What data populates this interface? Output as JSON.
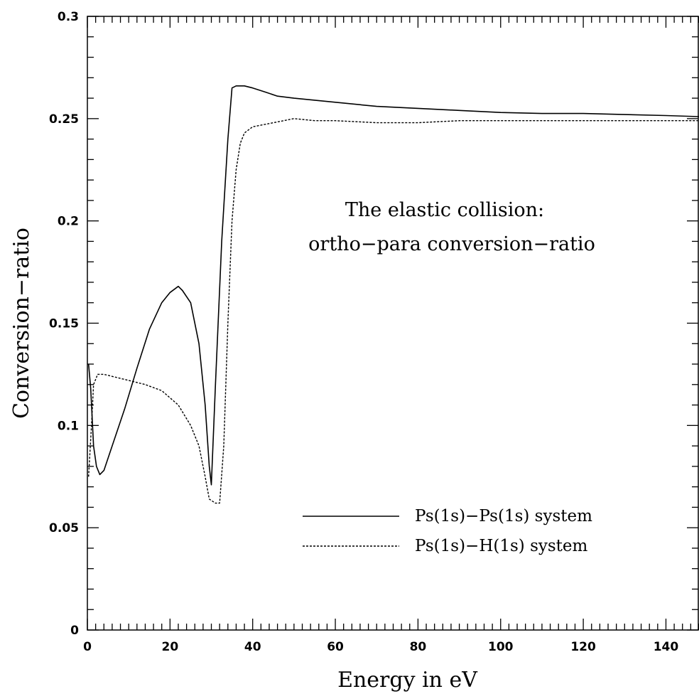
{
  "chart_data": {
    "type": "line",
    "title": "",
    "xlabel": "Energy in eV",
    "ylabel": "Conversion−ratio",
    "xlim": [
      0,
      148
    ],
    "ylim": [
      0,
      0.3
    ],
    "x_ticks": [
      0,
      20,
      40,
      60,
      80,
      100,
      120,
      140
    ],
    "y_ticks": [
      0,
      0.05,
      0.1,
      0.15,
      0.2,
      0.25,
      0.3
    ],
    "x_tick_labels": [
      "0",
      "20",
      "40",
      "60",
      "80",
      "100",
      "120",
      "140"
    ],
    "y_tick_labels": [
      "0",
      "0.05",
      "0.1",
      "0.15",
      "0.2",
      "0.25",
      "0.3"
    ],
    "grid": false,
    "annotation": [
      "The elastic collision:",
      "ortho−para conversion−ratio"
    ],
    "legend_position": "bottom-right",
    "series": [
      {
        "name": "Ps(1s)−Ps(1s) system",
        "style": "solid",
        "color": "#000000",
        "points": [
          [
            0.3,
            0.13
          ],
          [
            0.8,
            0.118
          ],
          [
            1.5,
            0.09
          ],
          [
            2.2,
            0.08
          ],
          [
            3,
            0.076
          ],
          [
            4,
            0.078
          ],
          [
            6,
            0.09
          ],
          [
            9,
            0.108
          ],
          [
            12,
            0.128
          ],
          [
            15,
            0.147
          ],
          [
            18,
            0.16
          ],
          [
            20,
            0.165
          ],
          [
            22,
            0.168
          ],
          [
            23,
            0.166
          ],
          [
            25,
            0.16
          ],
          [
            27,
            0.14
          ],
          [
            28.5,
            0.11
          ],
          [
            29.5,
            0.08
          ],
          [
            30,
            0.071
          ],
          [
            31,
            0.12
          ],
          [
            32.5,
            0.19
          ],
          [
            34,
            0.24
          ],
          [
            35,
            0.265
          ],
          [
            36,
            0.266
          ],
          [
            38,
            0.266
          ],
          [
            40,
            0.265
          ],
          [
            43,
            0.263
          ],
          [
            46,
            0.261
          ],
          [
            50,
            0.26
          ],
          [
            60,
            0.258
          ],
          [
            70,
            0.256
          ],
          [
            80,
            0.255
          ],
          [
            90,
            0.254
          ],
          [
            100,
            0.253
          ],
          [
            110,
            0.2525
          ],
          [
            120,
            0.2525
          ],
          [
            130,
            0.252
          ],
          [
            140,
            0.2515
          ],
          [
            148,
            0.251
          ]
        ]
      },
      {
        "name": "Ps(1s)−H(1s) system",
        "style": "dashed",
        "color": "#000000",
        "points": [
          [
            0.3,
            0.075
          ],
          [
            1,
            0.1
          ],
          [
            1.5,
            0.12
          ],
          [
            2.5,
            0.125
          ],
          [
            4,
            0.125
          ],
          [
            6,
            0.124
          ],
          [
            10,
            0.122
          ],
          [
            14,
            0.12
          ],
          [
            18,
            0.117
          ],
          [
            22,
            0.11
          ],
          [
            25,
            0.1
          ],
          [
            27,
            0.09
          ],
          [
            28.5,
            0.075
          ],
          [
            29.5,
            0.064
          ],
          [
            31,
            0.062
          ],
          [
            32,
            0.062
          ],
          [
            33,
            0.09
          ],
          [
            34,
            0.15
          ],
          [
            35,
            0.2
          ],
          [
            36,
            0.225
          ],
          [
            37,
            0.238
          ],
          [
            38,
            0.243
          ],
          [
            40,
            0.246
          ],
          [
            45,
            0.248
          ],
          [
            50,
            0.25
          ],
          [
            55,
            0.249
          ],
          [
            60,
            0.249
          ],
          [
            70,
            0.248
          ],
          [
            80,
            0.248
          ],
          [
            90,
            0.249
          ],
          [
            100,
            0.249
          ],
          [
            120,
            0.249
          ],
          [
            140,
            0.249
          ],
          [
            148,
            0.249
          ]
        ]
      }
    ]
  }
}
